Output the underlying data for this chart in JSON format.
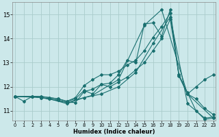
{
  "xlabel": "Humidex (Indice chaleur)",
  "bg_color": "#cce8ea",
  "grid_color": "#aacccc",
  "line_color": "#1a7070",
  "xlim": [
    -0.3,
    23.3
  ],
  "ylim": [
    10.6,
    15.5
  ],
  "yticks": [
    11,
    12,
    13,
    14,
    15
  ],
  "xticks": [
    0,
    1,
    2,
    3,
    4,
    5,
    6,
    7,
    8,
    9,
    10,
    11,
    12,
    13,
    14,
    15,
    16,
    17,
    18,
    19,
    20,
    21,
    22,
    23
  ],
  "lines": [
    {
      "x": [
        0,
        1,
        2,
        3,
        4,
        5,
        6,
        7,
        8,
        9,
        10,
        11,
        12,
        13,
        14,
        15,
        16,
        17,
        18,
        19,
        20,
        21,
        22,
        23
      ],
      "y": [
        11.6,
        11.4,
        11.6,
        11.6,
        11.55,
        11.5,
        11.4,
        11.5,
        11.85,
        11.7,
        12.1,
        12.15,
        12.5,
        13.1,
        13.0,
        14.6,
        14.65,
        14.1,
        15.2,
        12.5,
        11.75,
        11.0,
        10.65,
        10.7
      ]
    },
    {
      "x": [
        0,
        2,
        3,
        4,
        5,
        6,
        7,
        8,
        9,
        10,
        11,
        12,
        13,
        14,
        15,
        16,
        17,
        18,
        19,
        20,
        21,
        22,
        23
      ],
      "y": [
        11.6,
        11.6,
        11.6,
        11.55,
        11.5,
        11.4,
        11.55,
        12.05,
        12.3,
        12.5,
        12.5,
        12.65,
        12.9,
        13.1,
        13.5,
        14.05,
        14.5,
        15.05,
        12.45,
        11.7,
        12.0,
        12.3,
        12.5
      ]
    },
    {
      "x": [
        0,
        2,
        3,
        4,
        5,
        6,
        7,
        8,
        9,
        10,
        11,
        12,
        13,
        14,
        15,
        16,
        17,
        18,
        19,
        20,
        21,
        22,
        23
      ],
      "y": [
        11.6,
        11.6,
        11.55,
        11.5,
        11.45,
        11.35,
        11.35,
        11.8,
        11.9,
        12.1,
        12.0,
        12.2,
        12.4,
        12.7,
        13.0,
        13.5,
        14.0,
        14.8,
        12.5,
        11.7,
        11.5,
        11.1,
        10.85
      ]
    },
    {
      "x": [
        0,
        2,
        4,
        6,
        8,
        10,
        12,
        14,
        16,
        18,
        20,
        22,
        23
      ],
      "y": [
        11.6,
        11.6,
        11.5,
        11.3,
        11.55,
        11.7,
        12.0,
        12.6,
        13.8,
        14.9,
        11.3,
        10.7,
        10.75
      ]
    },
    {
      "x": [
        0,
        3,
        6,
        9,
        12,
        15,
        17,
        20,
        23
      ],
      "y": [
        11.6,
        11.55,
        11.35,
        11.65,
        12.3,
        14.55,
        15.2,
        11.7,
        10.7
      ]
    }
  ]
}
